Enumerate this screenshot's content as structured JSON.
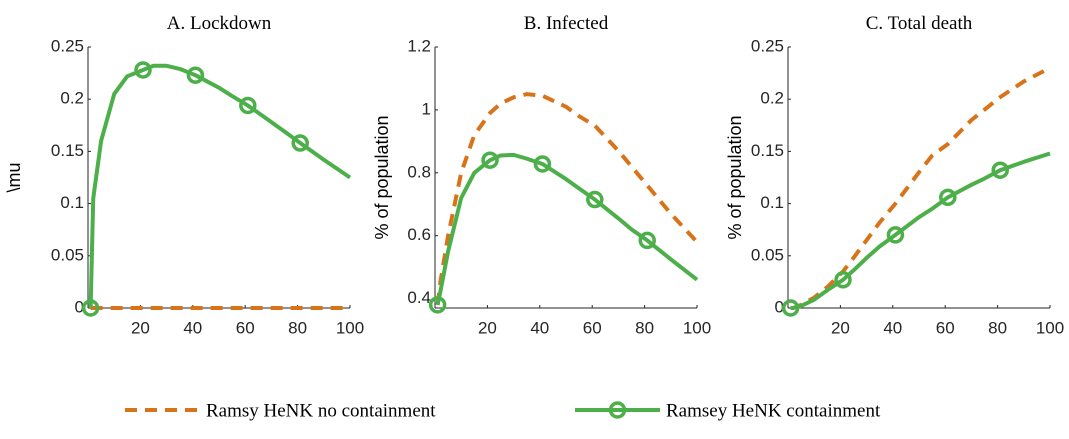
{
  "legend": [
    {
      "name": "Ramsy HeNK no containment",
      "color": "#d9731a",
      "dashed": true
    },
    {
      "name": "Ramsey HeNK containment",
      "color": "#4daf4a",
      "marker": "o"
    }
  ],
  "chart_data": [
    {
      "type": "line",
      "title": "A. Lockdown",
      "y_label": "\\mu",
      "x": [
        1,
        2,
        5,
        10,
        15,
        21,
        25,
        30,
        35,
        41,
        50,
        55,
        61,
        70,
        75,
        81,
        90,
        100
      ],
      "marker_indices": [
        0,
        5,
        9,
        12,
        15
      ],
      "series": [
        {
          "values": [
            0,
            0,
            0,
            0,
            0,
            0,
            0,
            0,
            0,
            0,
            0,
            0,
            0,
            0,
            0,
            0,
            0,
            0
          ]
        },
        {
          "values": [
            0,
            0.105,
            0.16,
            0.205,
            0.222,
            0.228,
            0.232,
            0.232,
            0.229,
            0.223,
            0.211,
            0.203,
            0.194,
            0.178,
            0.169,
            0.158,
            0.142,
            0.125
          ]
        }
      ],
      "xlim": [
        0,
        100
      ],
      "xticks": [
        20,
        40,
        60,
        80,
        100
      ],
      "ylim": [
        0,
        0.25
      ],
      "yticks": [
        0,
        0.05,
        0.1,
        0.15,
        0.2,
        0.25
      ]
    },
    {
      "type": "line",
      "title": "B. Infected",
      "y_label": "% of population",
      "x": [
        1,
        2,
        5,
        10,
        15,
        21,
        25,
        30,
        35,
        41,
        50,
        55,
        61,
        70,
        75,
        81,
        90,
        100
      ],
      "marker_indices": [
        0,
        5,
        9,
        12,
        15
      ],
      "series": [
        {
          "values": [
            0.38,
            0.45,
            0.6,
            0.8,
            0.92,
            0.99,
            1.02,
            1.04,
            1.05,
            1.045,
            1.01,
            0.98,
            0.95,
            0.87,
            0.82,
            0.76,
            0.67,
            0.58
          ]
        },
        {
          "values": [
            0.38,
            0.42,
            0.55,
            0.72,
            0.8,
            0.84,
            0.855,
            0.857,
            0.845,
            0.828,
            0.78,
            0.75,
            0.715,
            0.655,
            0.62,
            0.585,
            0.525,
            0.46
          ]
        }
      ],
      "xlim": [
        0,
        100
      ],
      "xticks": [
        20,
        40,
        60,
        80,
        100
      ],
      "ylim": [
        0.37,
        1.2
      ],
      "yticks": [
        0.4,
        0.6,
        0.8,
        1,
        1.2
      ]
    },
    {
      "type": "line",
      "title": "C. Total death",
      "y_label": "% of population",
      "x": [
        1,
        2,
        5,
        10,
        15,
        21,
        25,
        30,
        35,
        41,
        50,
        55,
        61,
        70,
        75,
        81,
        90,
        100
      ],
      "marker_indices": [
        0,
        5,
        9,
        12,
        15
      ],
      "series": [
        {
          "values": [
            0,
            0,
            0.003,
            0.01,
            0.02,
            0.035,
            0.048,
            0.065,
            0.082,
            0.1,
            0.13,
            0.146,
            0.157,
            0.18,
            0.19,
            0.202,
            0.217,
            0.23
          ]
        },
        {
          "values": [
            0,
            0,
            0.002,
            0.008,
            0.017,
            0.027,
            0.036,
            0.048,
            0.059,
            0.07,
            0.087,
            0.095,
            0.106,
            0.118,
            0.124,
            0.132,
            0.14,
            0.148
          ]
        }
      ],
      "xlim": [
        0,
        100
      ],
      "xticks": [
        20,
        40,
        60,
        80,
        100
      ],
      "ylim": [
        0,
        0.25
      ],
      "yticks": [
        0,
        0.05,
        0.1,
        0.15,
        0.2,
        0.25
      ]
    }
  ]
}
